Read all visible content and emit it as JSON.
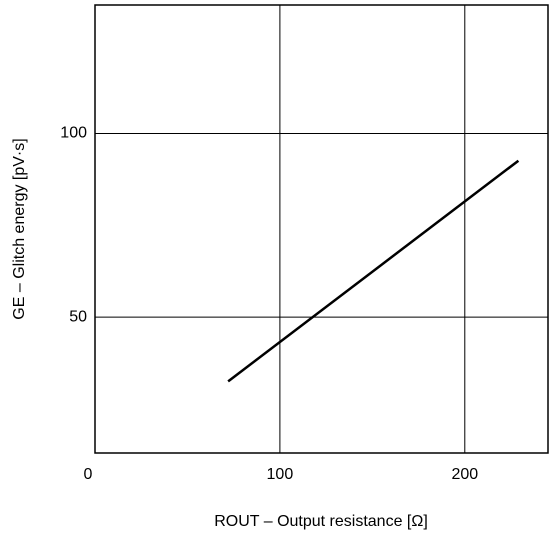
{
  "chart_data": {
    "type": "line",
    "x_label": "ROUT – Output resistance [Ω]",
    "y_label": "GE – Glitch energy [pV·s]",
    "x": [
      72,
      229
    ],
    "series": [
      {
        "color": "#000000",
        "values": [
          32.5,
          92.6
        ]
      }
    ],
    "xlim": [
      0,
      245
    ],
    "ylim": [
      13,
      135
    ],
    "xticks": [
      0,
      100,
      200
    ],
    "yticks": [
      50,
      100
    ],
    "grid": true
  }
}
